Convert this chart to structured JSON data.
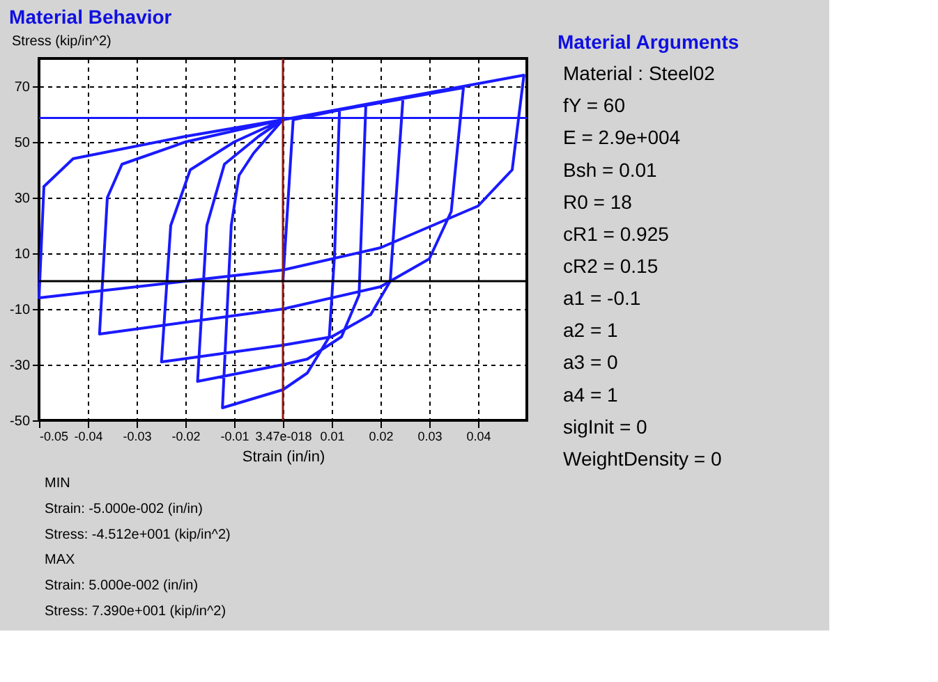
{
  "chart_data": [
    {
      "type": "line",
      "title": "Material Behavior",
      "xlabel": "Strain (in/in)",
      "ylabel": "Stress (kip/in^2)",
      "xlim": [
        -0.05,
        0.05
      ],
      "ylim": [
        -50,
        80
      ],
      "xticks": [
        -0.05,
        -0.04,
        -0.03,
        -0.02,
        -0.01,
        {
          "value": 0,
          "label": "3.47e-018"
        },
        0.01,
        0.02,
        0.03,
        0.04
      ],
      "yticks": [
        -50,
        -30,
        -10,
        10,
        30,
        50,
        70
      ],
      "grid": true,
      "line_style": "solid",
      "marker": "none",
      "series": [
        {
          "color": "#1a1aff",
          "x": [
            0,
            0.0021,
            0.0116,
            0.0106,
            0.0095,
            0.005,
            0,
            -0.0124,
            -0.0106,
            -0.009,
            -0.006,
            0,
            0.017,
            0.0156,
            0.012,
            0.005,
            0,
            -0.0175,
            -0.0156,
            -0.012,
            -0.005,
            0,
            0.0246,
            0.022,
            0.018,
            0.01,
            0,
            -0.0249,
            -0.023,
            -0.019,
            -0.01,
            0,
            0.037,
            0.0345,
            0.03,
            0.02,
            0,
            -0.0376,
            -0.036,
            -0.033,
            -0.02,
            0,
            0.0494,
            0.047,
            0.04,
            0.02,
            0,
            -0.05,
            -0.049,
            -0.043,
            -0.02,
            0
          ],
          "values": [
            0,
            58,
            61.5,
            10,
            -20,
            -33,
            -39,
            -45.5,
            20,
            38,
            46,
            58,
            63.5,
            -5,
            -20,
            -28,
            -30,
            -36,
            20,
            42,
            52,
            58,
            65.5,
            0,
            -12,
            -20,
            -23,
            -29,
            20,
            40,
            50,
            58,
            69.5,
            25,
            8,
            -2,
            -10,
            -19,
            30,
            42,
            50,
            58,
            74,
            40,
            27,
            12,
            4,
            -6,
            34,
            44,
            52,
            58
          ]
        }
      ],
      "ref_lines": [
        {
          "axis": "x",
          "value": 0,
          "color": "#8b1a1a"
        },
        {
          "axis": "y",
          "value": 0,
          "color": "#000000"
        },
        {
          "axis": "y",
          "value": 58.6,
          "color": "#1a1aff"
        }
      ],
      "annotations": [
        "MIN",
        "Strain: -5.000e-002 (in/in)",
        "Stress: -4.512e+001 (kip/in^2)",
        "MAX",
        "Strain: 5.000e-002 (in/in)",
        "Stress: 7.390e+001 (kip/in^2)"
      ]
    },
    {
      "type": "other",
      "title": "Material Arguments",
      "annotations": [
        "Material : Steel02",
        "fY = 60",
        "E = 2.9e+004",
        "Bsh = 0.01",
        "R0 = 18",
        "cR1 = 0.925",
        "cR2 = 0.15",
        "a1 = -0.1",
        "a2 = 1",
        "a3 = 0",
        "a4 = 1",
        "sigInit = 0",
        "WeightDensity = 0"
      ]
    }
  ]
}
